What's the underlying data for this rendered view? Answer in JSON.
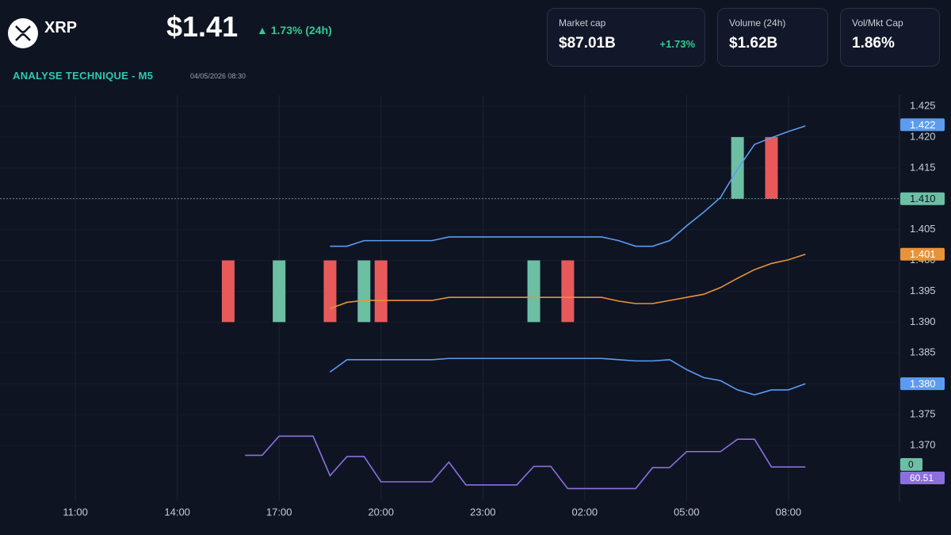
{
  "header": {
    "symbol": "XRP",
    "price": "$1.41",
    "change": "▲ 1.73% (24h)",
    "section": "ANALYSE TECHNIQUE - M5",
    "timestamp": "04/05/2026 08:30"
  },
  "stats": [
    {
      "label": "Market cap",
      "value": "$87.01B",
      "change": "+1.73%"
    },
    {
      "label": "Volume (24h)",
      "value": "$1.62B"
    },
    {
      "label": "Vol/Mkt Cap",
      "value": "1.86%"
    }
  ],
  "chart_data": {
    "type": "candlestick",
    "xlim": [
      -2.22,
      24.27
    ],
    "ylim": [
      1.361,
      1.4268
    ],
    "xticks": [
      {
        "value": 0,
        "label": "11:00"
      },
      {
        "value": 3,
        "label": "14:00"
      },
      {
        "value": 6,
        "label": "17:00"
      },
      {
        "value": 9,
        "label": "20:00"
      },
      {
        "value": 12,
        "label": "23:00"
      },
      {
        "value": 15,
        "label": "02:00"
      },
      {
        "value": 18,
        "label": "05:00"
      },
      {
        "value": 21,
        "label": "08:00"
      }
    ],
    "yticks": [
      {
        "value": 1.37,
        "label": "1.370"
      },
      1.375,
      {
        "value": 1.38,
        "label": "1.380"
      },
      1.385,
      {
        "value": 1.39,
        "label": "1.390"
      },
      1.395,
      {
        "value": 1.4,
        "label": "1.400"
      },
      1.405,
      {
        "value": 1.41,
        "label": "1.410"
      },
      1.415,
      {
        "value": 1.42,
        "label": "1.420"
      },
      1.425
    ],
    "grid": true,
    "candles": {
      "x": [
        4.5,
        6,
        7.5,
        8.5,
        9,
        13.5,
        14.5,
        19.5,
        20.5
      ],
      "open": [
        1.4,
        1.39,
        1.4,
        1.39,
        1.4,
        1.39,
        1.4,
        1.41,
        1.42
      ],
      "close": [
        1.39,
        1.4,
        1.39,
        1.4,
        1.39,
        1.4,
        1.39,
        1.42,
        1.41
      ],
      "up_color": "#6dbfa4",
      "down_color": "#e85a5a"
    },
    "series": [
      {
        "name": "upper",
        "color": "#5b9cf0",
        "x": [
          7.5,
          8,
          8.5,
          9,
          9.5,
          10,
          10.5,
          11,
          11.5,
          12,
          12.5,
          13,
          13.5,
          14,
          14.5,
          15,
          15.5,
          16,
          16.5,
          17,
          17.5,
          18,
          18.5,
          19,
          19.5,
          20,
          20.5,
          21,
          21.5
        ],
        "values": [
          1.4023,
          1.4023,
          1.4032,
          1.4032,
          1.4032,
          1.4032,
          1.4032,
          1.4038,
          1.4038,
          1.4038,
          1.4038,
          1.4038,
          1.4038,
          1.4038,
          1.4038,
          1.4038,
          1.4038,
          1.4032,
          1.4023,
          1.4023,
          1.4032,
          1.4056,
          1.4078,
          1.4102,
          1.4148,
          1.4188,
          1.4199,
          1.4209,
          1.4218
        ]
      },
      {
        "name": "middle",
        "color": "#e8923a",
        "x": [
          7.5,
          8,
          8.5,
          9,
          9.5,
          10,
          10.5,
          11,
          11.5,
          12,
          12.5,
          13,
          13.5,
          14,
          14.5,
          15,
          15.5,
          16,
          16.5,
          17,
          17.5,
          18,
          18.5,
          19,
          19.5,
          20,
          20.5,
          21,
          21.5
        ],
        "values": [
          1.3922,
          1.3932,
          1.3935,
          1.3935,
          1.3935,
          1.3935,
          1.3935,
          1.394,
          1.394,
          1.394,
          1.394,
          1.394,
          1.394,
          1.394,
          1.394,
          1.394,
          1.394,
          1.3934,
          1.393,
          1.393,
          1.3935,
          1.394,
          1.3945,
          1.3956,
          1.3971,
          1.3985,
          1.3995,
          1.4001,
          1.401
        ]
      },
      {
        "name": "lower",
        "color": "#5b9cf0",
        "x": [
          7.5,
          8,
          8.5,
          9,
          9.5,
          10,
          10.5,
          11,
          11.5,
          12,
          12.5,
          13,
          13.5,
          14,
          14.5,
          15,
          15.5,
          16,
          16.5,
          17,
          17.5,
          18,
          18.5,
          19,
          19.5,
          20,
          20.5,
          21,
          21.5
        ],
        "values": [
          1.3819,
          1.3839,
          1.3839,
          1.3839,
          1.3839,
          1.3839,
          1.3839,
          1.3841,
          1.3841,
          1.3841,
          1.3841,
          1.3841,
          1.3841,
          1.3841,
          1.3841,
          1.3841,
          1.3841,
          1.3839,
          1.3837,
          1.3837,
          1.3839,
          1.3823,
          1.381,
          1.3805,
          1.379,
          1.3782,
          1.379,
          1.379,
          1.38
        ]
      },
      {
        "name": "oscillator",
        "color": "#8b6fe0",
        "x": [
          5,
          5.5,
          6,
          6.5,
          7,
          7.5,
          8,
          8.5,
          9,
          9.5,
          10,
          10.5,
          11,
          11.5,
          12,
          12.5,
          13,
          13.5,
          14,
          14.5,
          15,
          15.5,
          16,
          16.5,
          17,
          17.5,
          18,
          18.5,
          19,
          19.5,
          20,
          20.5,
          21,
          21.5
        ],
        "values": [
          1.3684,
          1.3684,
          1.3715,
          1.3715,
          1.3715,
          1.3651,
          1.3682,
          1.3682,
          1.3641,
          1.3641,
          1.3641,
          1.3641,
          1.3673,
          1.3636,
          1.3636,
          1.3636,
          1.3636,
          1.3666,
          1.3666,
          1.363,
          1.363,
          1.363,
          1.363,
          1.363,
          1.3664,
          1.3664,
          1.369,
          1.369,
          1.369,
          1.371,
          1.371,
          1.3665,
          1.3665,
          1.3665
        ]
      }
    ],
    "price_tags": [
      {
        "value": 1.422,
        "label": "1.422",
        "color": "#5b9cf0"
      },
      {
        "value": 1.41,
        "label": "1.410",
        "color": "#6dbfa4"
      },
      {
        "value": 1.401,
        "label": "1.401",
        "color": "#e8923a"
      },
      {
        "value": 1.38,
        "label": "1.380",
        "color": "#5b9cf0"
      }
    ],
    "indicator_tags": [
      {
        "label": "0",
        "color": "#6dbfa4"
      },
      {
        "label": "60.51",
        "color": "#8b6fe0"
      }
    ]
  }
}
